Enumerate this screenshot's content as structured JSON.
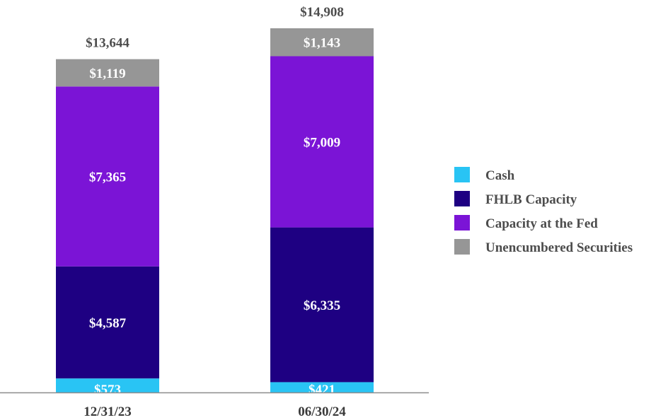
{
  "chart_data": {
    "type": "bar",
    "stacked": true,
    "title": "",
    "xlabel": "",
    "ylabel": "",
    "categories": [
      "12/31/23",
      "06/30/24"
    ],
    "series": [
      {
        "name": "Cash",
        "color": "#29c4f4",
        "values": [
          573,
          421
        ],
        "labels": [
          "$573",
          "$421"
        ]
      },
      {
        "name": "FHLB Capacity",
        "color": "#1e0082",
        "values": [
          4587,
          6335
        ],
        "labels": [
          "$4,587",
          "$6,335"
        ]
      },
      {
        "name": "Capacity at the Fed",
        "color": "#7b14d6",
        "values": [
          7365,
          7009
        ],
        "labels": [
          "$7,365",
          "$7,009"
        ]
      },
      {
        "name": "Unencumbered Securities",
        "color": "#969696",
        "values": [
          1119,
          1143
        ],
        "labels": [
          "$1,119",
          "$1,143"
        ]
      }
    ],
    "totals": [
      13644,
      14908
    ],
    "total_labels": [
      "$13,644",
      "$14,908"
    ],
    "ylim": [
      0,
      14908
    ],
    "grid": false,
    "legend_position": "right"
  }
}
